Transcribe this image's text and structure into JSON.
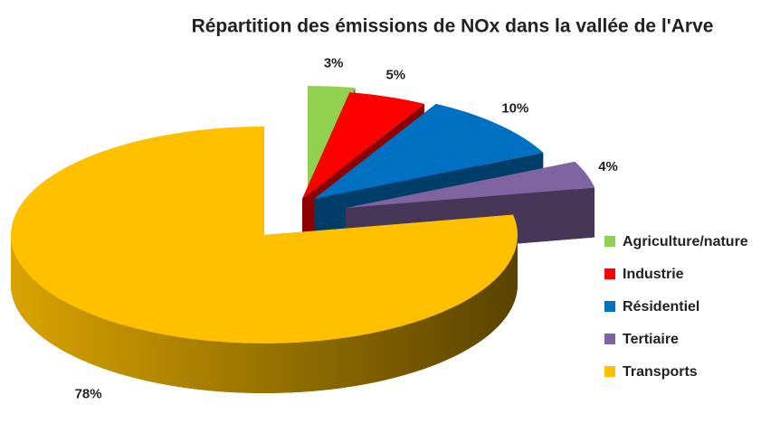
{
  "chart_data": {
    "type": "pie",
    "title": "Répartition des émissions de NOx dans la vallée de l'Arve",
    "categories": [
      "Agriculture/nature",
      "Industrie",
      "Résidentiel",
      "Tertiaire",
      "Transports"
    ],
    "values": [
      3,
      5,
      10,
      4,
      78
    ],
    "value_labels": [
      "3%",
      "5%",
      "10%",
      "4%",
      "78%"
    ],
    "colors": [
      "#92d050",
      "#ff0000",
      "#0070c0",
      "#8064a2",
      "#ffc000"
    ],
    "legend": "right"
  }
}
